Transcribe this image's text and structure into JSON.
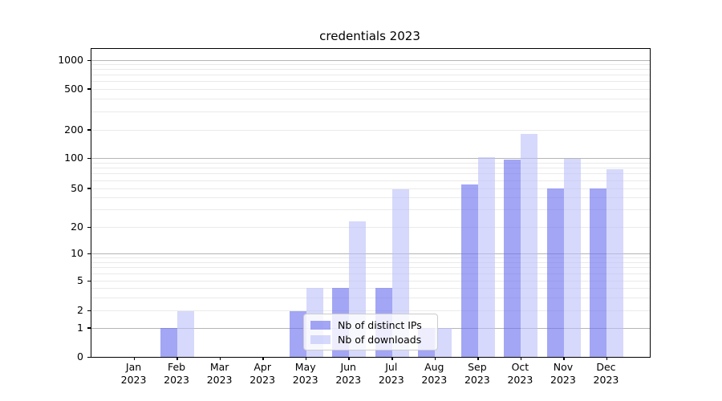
{
  "chart_data": {
    "type": "bar",
    "title": "credentials 2023",
    "categories": [
      "Jan",
      "Feb",
      "Mar",
      "Apr",
      "May",
      "Jun",
      "Jul",
      "Aug",
      "Sep",
      "Oct",
      "Nov",
      "Dec"
    ],
    "year_label": "2023",
    "series": [
      {
        "name": "Nb of distinct IPs",
        "color": "rgba(106,112,238,0.62)",
        "values": [
          0,
          1,
          0,
          0,
          2,
          4,
          4,
          1,
          55,
          97,
          50,
          50
        ]
      },
      {
        "name": "Nb of downloads",
        "color": "rgba(187,192,248,0.60)",
        "values": [
          0,
          2,
          0,
          0,
          4,
          23,
          49,
          1,
          104,
          180,
          100,
          78
        ]
      }
    ],
    "yscale": "symlog",
    "yticks": [
      0,
      1,
      2,
      5,
      10,
      20,
      50,
      100,
      200,
      500,
      1000
    ],
    "ylim": [
      0,
      1400
    ],
    "grid": "horizontal",
    "legend_position": "lower-center",
    "colors": {
      "major_grid": "#b5b5b5",
      "minor_grid": "#eaeaea",
      "spine": "#000000"
    }
  }
}
